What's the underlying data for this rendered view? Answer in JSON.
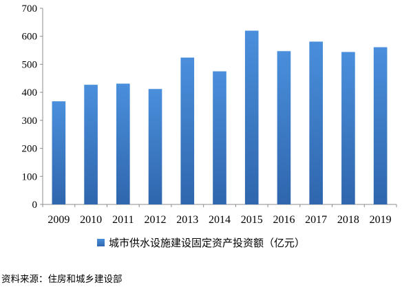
{
  "chart_data": {
    "type": "bar",
    "categories": [
      "2009",
      "2010",
      "2011",
      "2012",
      "2013",
      "2014",
      "2015",
      "2016",
      "2017",
      "2018",
      "2019"
    ],
    "values": [
      368,
      427,
      431,
      412,
      524,
      475,
      620,
      547,
      581,
      544,
      561
    ],
    "series": [
      {
        "name": "城市供水设施建设固定资产投资额（亿元）",
        "values": [
          368,
          427,
          431,
          412,
          524,
          475,
          620,
          547,
          581,
          544,
          561
        ]
      }
    ],
    "ylim": [
      0,
      700
    ],
    "yticks": [
      0,
      100,
      200,
      300,
      400,
      500,
      600,
      700
    ],
    "grid": false,
    "legend": "bottom",
    "colors": {
      "bar_top": "#4a8fdc",
      "bar_bottom": "#2f66ad"
    }
  },
  "legend": {
    "label": "城市供水设施建设固定资产投资额（亿元）"
  },
  "source": "资料来源：住房和城乡建设部"
}
